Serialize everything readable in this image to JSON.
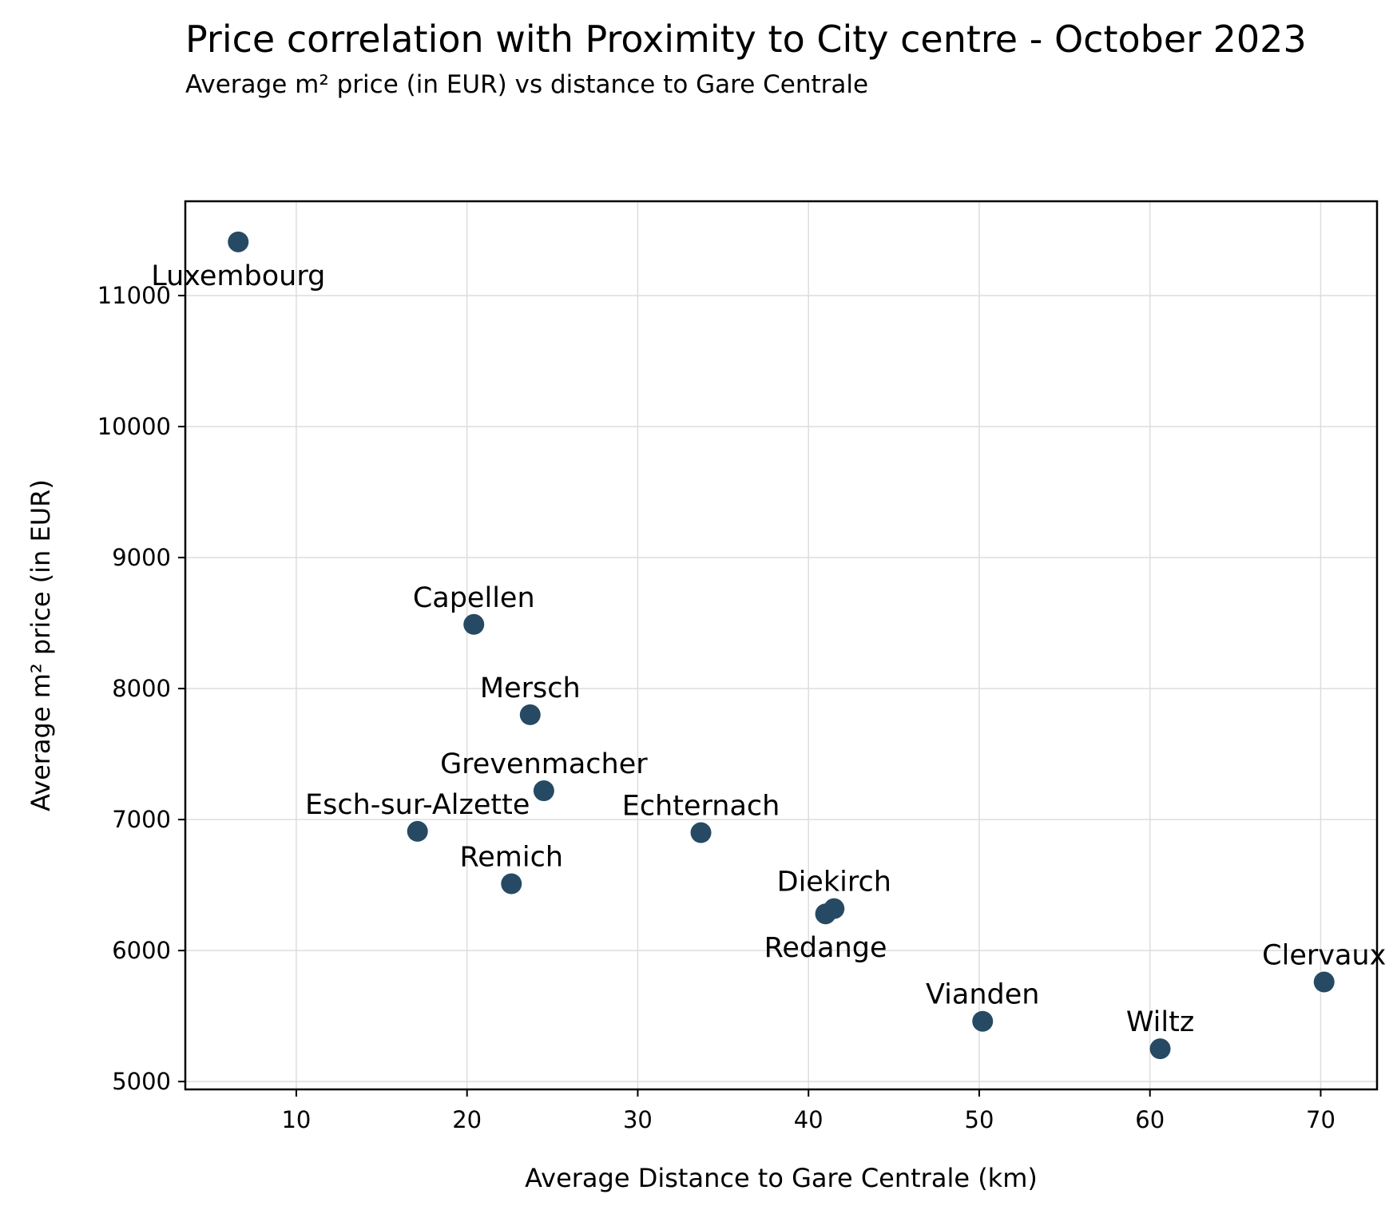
{
  "chart_data": {
    "type": "scatter",
    "title": "Price correlation with Proximity to City centre - October 2023",
    "subtitle": "Average m² price (in EUR) vs distance to Gare Centrale",
    "xlabel": "Average Distance to Gare Centrale (km)",
    "ylabel": "Average m² price (in EUR)",
    "xlim": [
      3.5,
      73.3
    ],
    "ylim": [
      4940,
      11720
    ],
    "xticks": [
      10,
      20,
      30,
      40,
      50,
      60,
      70
    ],
    "yticks": [
      5000,
      6000,
      7000,
      8000,
      9000,
      10000,
      11000
    ],
    "grid": true,
    "point_color": "#264a63",
    "points": [
      {
        "label": "Luxembourg",
        "x": 6.6,
        "y": 11410,
        "label_pos": "below"
      },
      {
        "label": "Capellen",
        "x": 20.4,
        "y": 8490,
        "label_pos": "above"
      },
      {
        "label": "Mersch",
        "x": 23.7,
        "y": 7800,
        "label_pos": "above"
      },
      {
        "label": "Grevenmacher",
        "x": 24.5,
        "y": 7220,
        "label_pos": "above"
      },
      {
        "label": "Esch-sur-Alzette",
        "x": 17.1,
        "y": 6910,
        "label_pos": "above"
      },
      {
        "label": "Echternach",
        "x": 33.7,
        "y": 6900,
        "label_pos": "above"
      },
      {
        "label": "Remich",
        "x": 22.6,
        "y": 6510,
        "label_pos": "above"
      },
      {
        "label": "Diekirch",
        "x": 41.5,
        "y": 6320,
        "label_pos": "above"
      },
      {
        "label": "Redange",
        "x": 41.0,
        "y": 6280,
        "label_pos": "below"
      },
      {
        "label": "Clervaux",
        "x": 70.2,
        "y": 5760,
        "label_pos": "above"
      },
      {
        "label": "Vianden",
        "x": 50.2,
        "y": 5460,
        "label_pos": "above"
      },
      {
        "label": "Wiltz",
        "x": 60.6,
        "y": 5250,
        "label_pos": "above"
      }
    ]
  }
}
